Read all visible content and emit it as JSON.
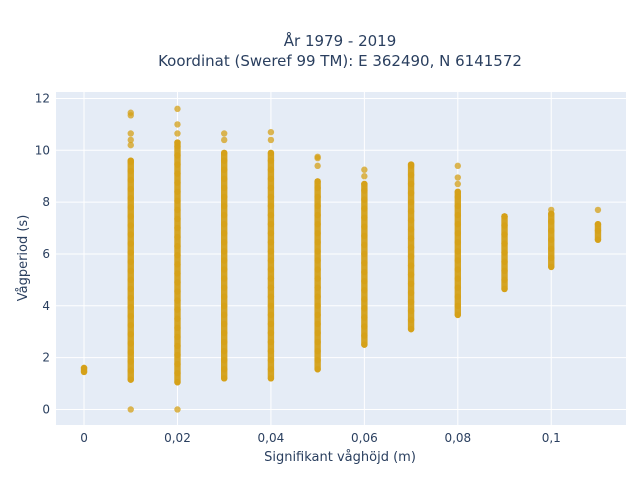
{
  "chart_data": {
    "type": "scatter",
    "title_line1": "År 1979 - 2019",
    "title_line2": "Koordinat (Sweref 99 TM): E 362490, N 6141572",
    "xlabel": "Signifikant våghöjd (m)",
    "ylabel": "Vågperiod (s)",
    "xlim": [
      -0.006,
      0.116
    ],
    "ylim": [
      -0.6,
      12.25
    ],
    "x_ticks": [
      {
        "value": 0,
        "label": "0"
      },
      {
        "value": 0.02,
        "label": "0,02"
      },
      {
        "value": 0.04,
        "label": "0,04"
      },
      {
        "value": 0.06,
        "label": "0,06"
      },
      {
        "value": 0.08,
        "label": "0,08"
      },
      {
        "value": 0.1,
        "label": "0,1"
      }
    ],
    "y_ticks": [
      {
        "value": 0,
        "label": "0"
      },
      {
        "value": 2,
        "label": "2"
      },
      {
        "value": 4,
        "label": "4"
      },
      {
        "value": 6,
        "label": "6"
      },
      {
        "value": 8,
        "label": "8"
      },
      {
        "value": 10,
        "label": "10"
      },
      {
        "value": 12,
        "label": "12"
      }
    ],
    "grid": true,
    "marker_color": "#D4A017",
    "plot_bg": "#E5ECF6",
    "series": [
      {
        "x": 0,
        "y_min": 1.45,
        "y_max": 1.6,
        "outliers": []
      },
      {
        "x": 0.01,
        "y_min": 1.15,
        "y_max": 9.6,
        "outliers": [
          0,
          10.2,
          10.4,
          10.65,
          11.35,
          11.45
        ]
      },
      {
        "x": 0.02,
        "y_min": 1.05,
        "y_max": 10.3,
        "outliers": [
          0,
          10.65,
          11.0,
          11.6
        ]
      },
      {
        "x": 0.03,
        "y_min": 1.2,
        "y_max": 9.9,
        "outliers": [
          10.4,
          10.65
        ]
      },
      {
        "x": 0.04,
        "y_min": 1.2,
        "y_max": 9.9,
        "outliers": [
          10.4,
          10.7
        ]
      },
      {
        "x": 0.05,
        "y_min": 1.55,
        "y_max": 8.8,
        "outliers": [
          9.4,
          9.7,
          9.75
        ]
      },
      {
        "x": 0.06,
        "y_min": 2.5,
        "y_max": 8.7,
        "outliers": [
          9.0,
          9.25
        ]
      },
      {
        "x": 0.07,
        "y_min": 3.1,
        "y_max": 9.45,
        "outliers": []
      },
      {
        "x": 0.08,
        "y_min": 3.65,
        "y_max": 8.4,
        "outliers": [
          8.7,
          8.95,
          9.4
        ]
      },
      {
        "x": 0.09,
        "y_min": 4.65,
        "y_max": 7.45,
        "outliers": []
      },
      {
        "x": 0.1,
        "y_min": 5.5,
        "y_max": 7.55,
        "outliers": [
          7.7
        ]
      },
      {
        "x": 0.11,
        "y_min": 6.55,
        "y_max": 7.15,
        "outliers": [
          7.7
        ]
      }
    ]
  }
}
